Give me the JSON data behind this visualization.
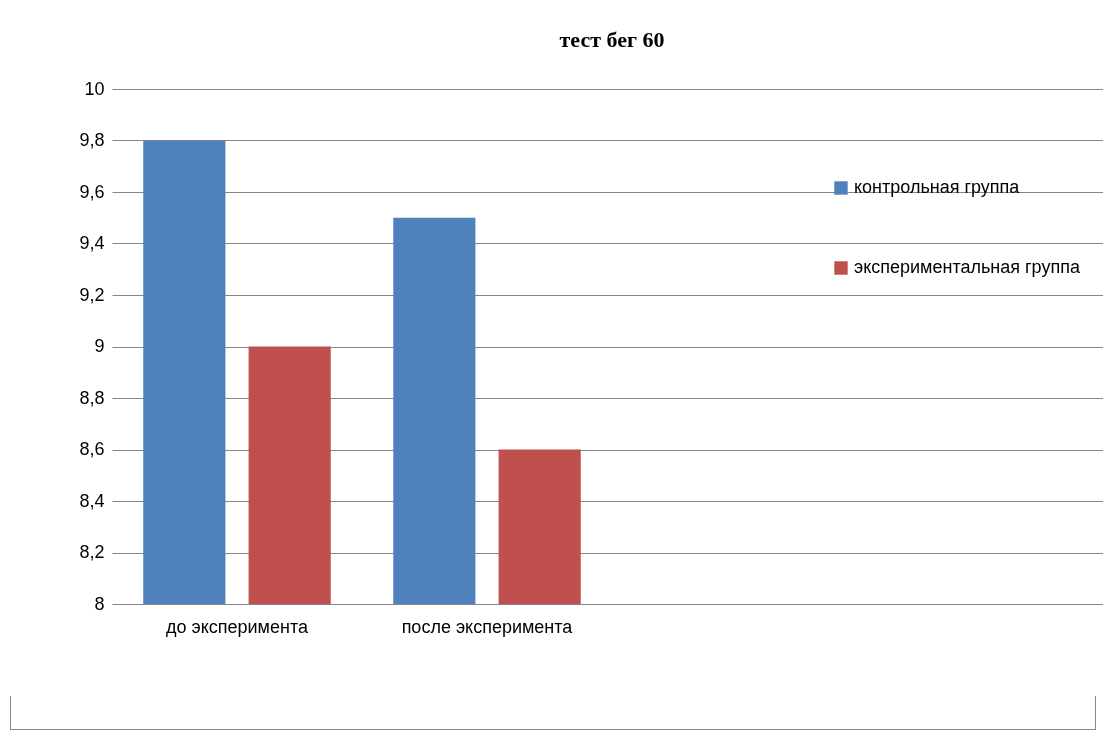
{
  "chart_data": {
    "type": "bar",
    "title": "тест бег 60",
    "categories": [
      "до эксперимента",
      "после эксперимента",
      null,
      null
    ],
    "series": [
      {
        "name": "контрольная группа",
        "color": "#4f81bd",
        "values": [
          9.8,
          9.5,
          null,
          null
        ]
      },
      {
        "name": "экспериментальная группа",
        "color": "#c0504d",
        "values": [
          9.0,
          8.6,
          null,
          null
        ]
      }
    ],
    "ylim": [
      8,
      10
    ],
    "yticks": [
      8,
      {
        "value": 8.2,
        "label": "8,2"
      },
      {
        "value": 8.4,
        "label": "8,4"
      },
      {
        "value": 8.6,
        "label": "8,6"
      },
      {
        "value": 8.8,
        "label": "8,8"
      },
      9,
      {
        "value": 9.2,
        "label": "9,2"
      },
      {
        "value": 9.4,
        "label": "9,4"
      },
      {
        "value": 9.6,
        "label": "9,6"
      },
      {
        "value": 9.8,
        "label": "9,8"
      },
      10
    ],
    "grid": "y",
    "legend": "right"
  }
}
